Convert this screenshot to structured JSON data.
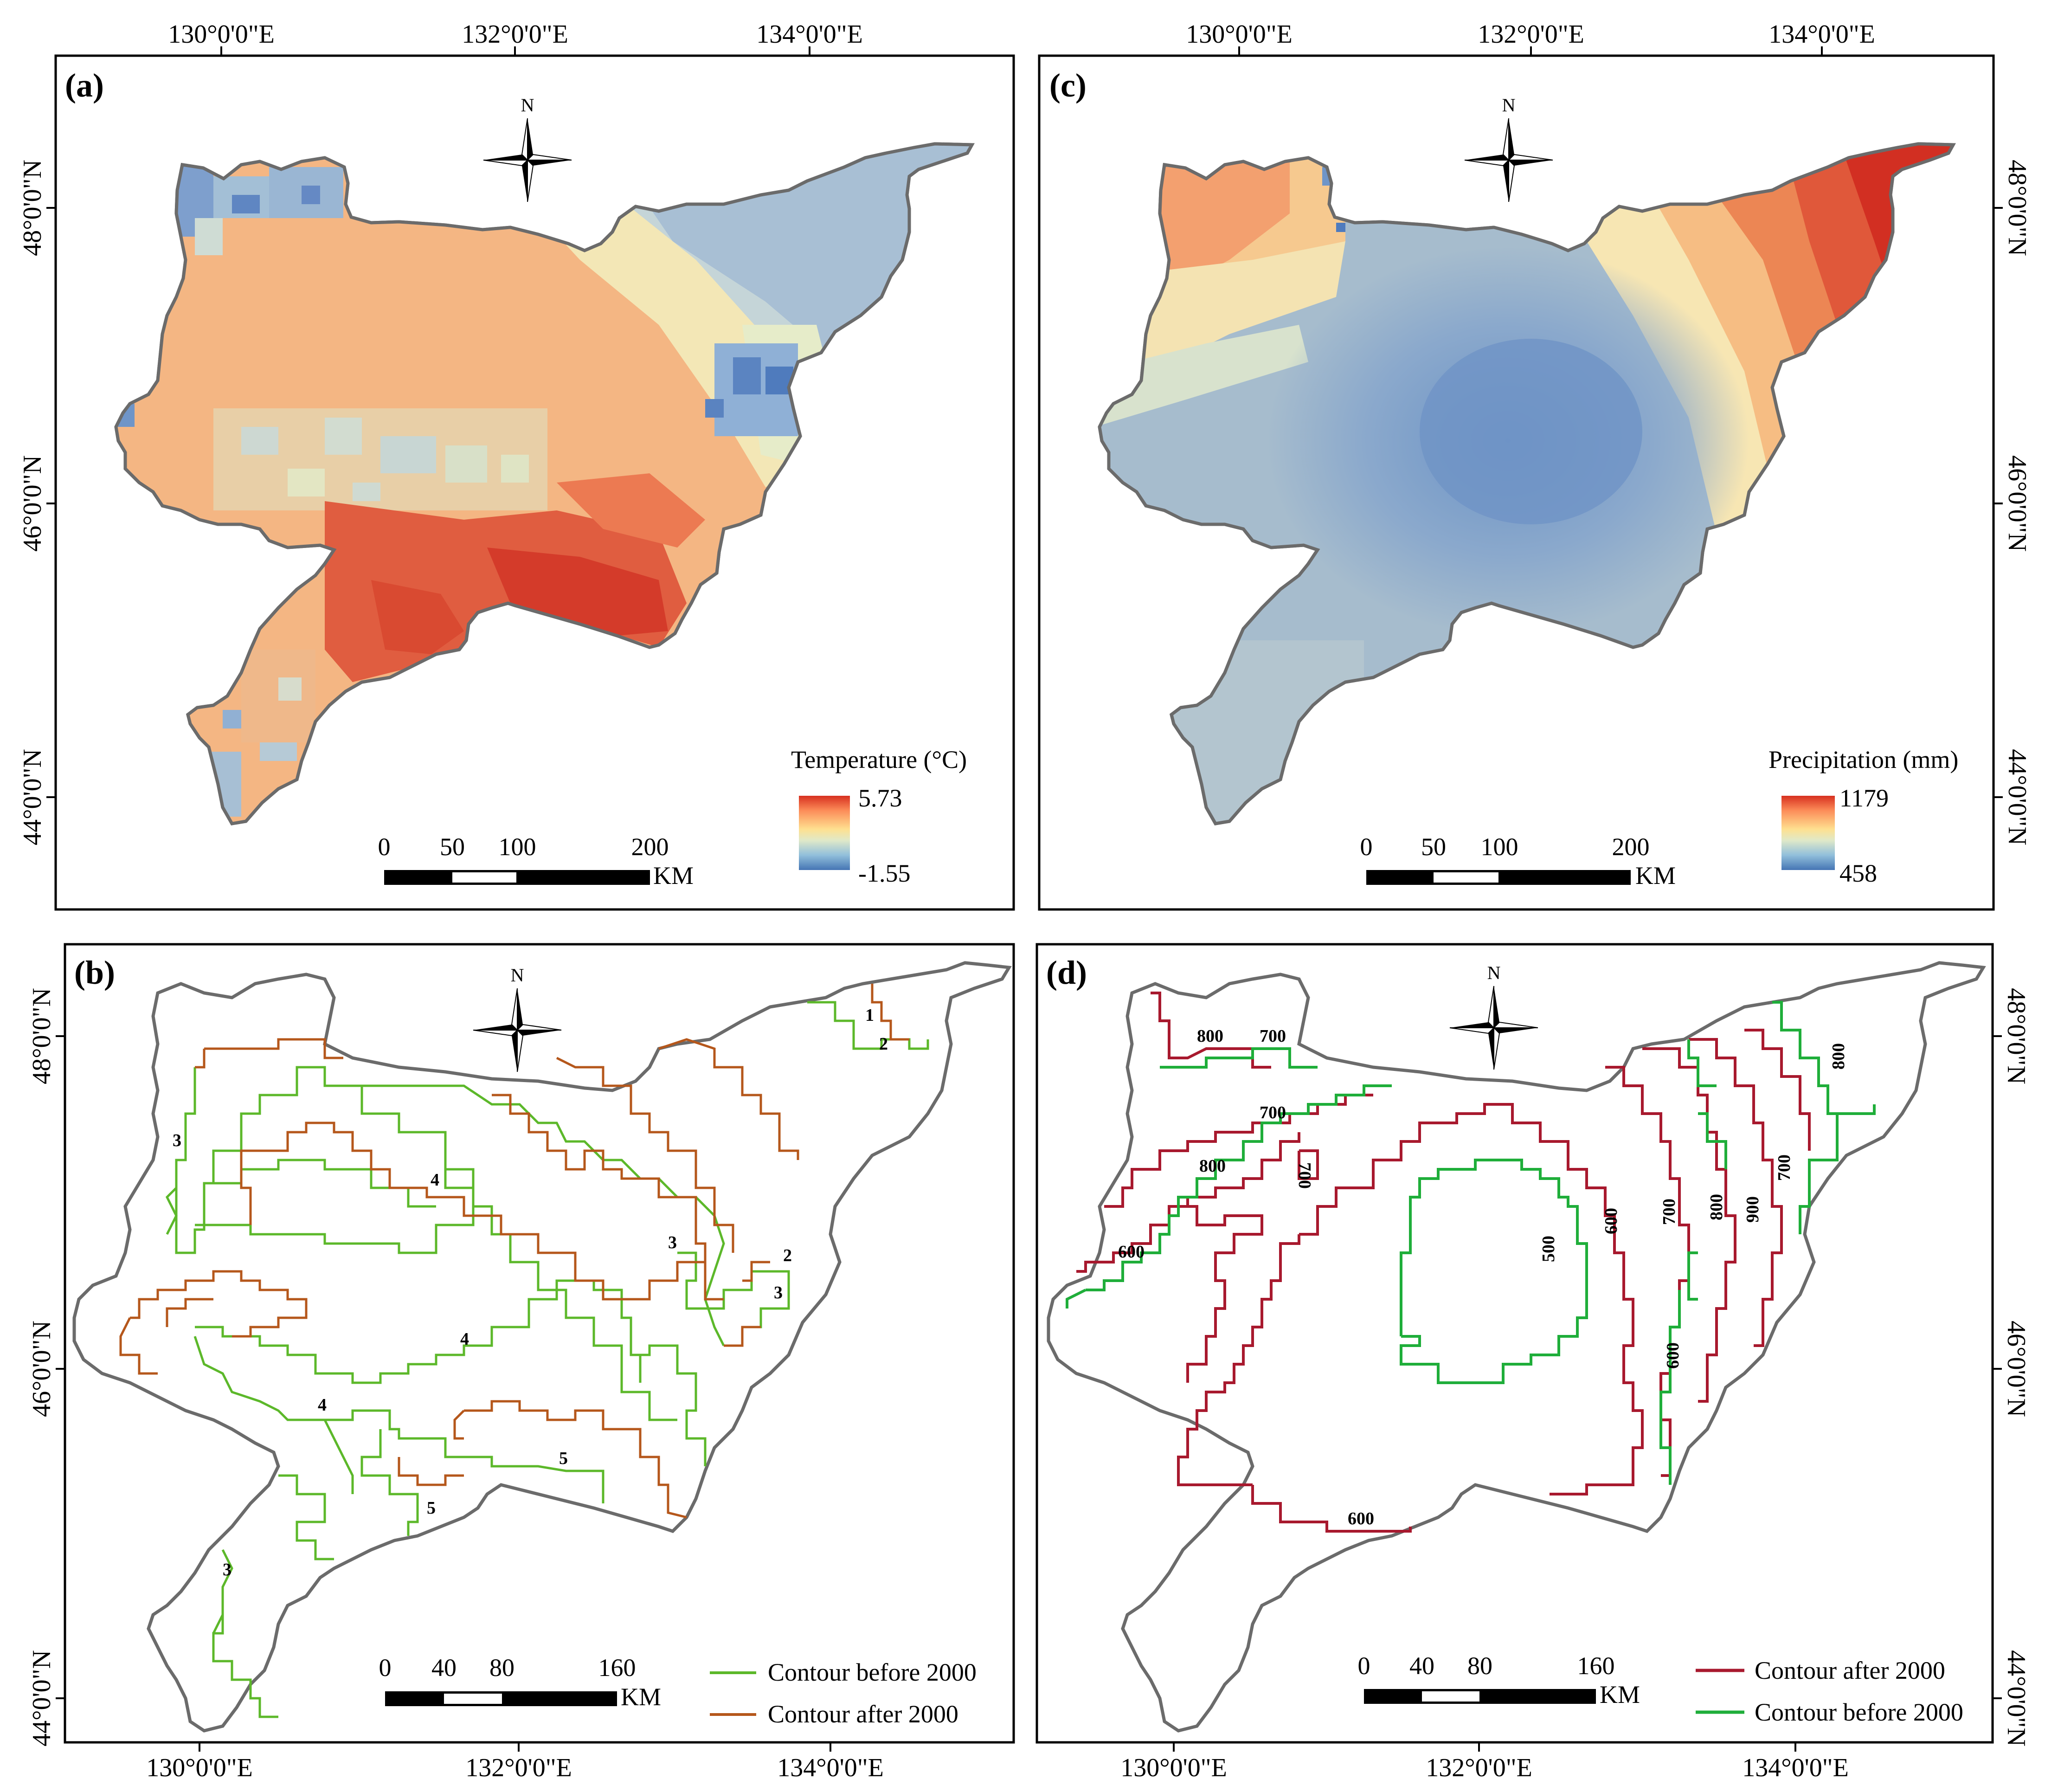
{
  "figure": {
    "panels": [
      {
        "id": "a",
        "label": "(a)",
        "kind": "raster",
        "top_lon_labels": [
          "130°0'0\"E",
          "132°0'0\"E",
          "134°0'0\"E"
        ],
        "left_lat_labels": [
          "48°0'0\"N",
          "46°0'0\"N",
          "44°0'0\"N"
        ],
        "north_label": "N",
        "legend": {
          "title": "Temperature (°C)",
          "max": "5.73",
          "min": "-1.55",
          "colors": [
            "#d7301f",
            "#fc8d59",
            "#fee090",
            "#e0e9c8",
            "#91bfdb",
            "#4575b4"
          ]
        },
        "scale_bar": {
          "ticks": [
            "0",
            "50",
            "100",
            "200"
          ],
          "unit": "KM"
        },
        "field": "temperature"
      },
      {
        "id": "c",
        "label": "(c)",
        "kind": "raster",
        "top_lon_labels": [
          "130°0'0\"E",
          "132°0'0\"E",
          "134°0'0\"E"
        ],
        "right_lat_labels": [
          "48°0'0\"N",
          "46°0'0\"N",
          "44°0'0\"N"
        ],
        "north_label": "N",
        "legend": {
          "title": "Precipitation (mm)",
          "max": "1179",
          "min": "458",
          "colors": [
            "#d7301f",
            "#fc8d59",
            "#fee090",
            "#e0e9c8",
            "#91bfdb",
            "#4575b4"
          ]
        },
        "scale_bar": {
          "ticks": [
            "0",
            "50",
            "100",
            "200"
          ],
          "unit": "KM"
        },
        "field": "precipitation"
      },
      {
        "id": "b",
        "label": "(b)",
        "kind": "contour",
        "bottom_lon_labels": [
          "130°0'0\"E",
          "132°0'0\"E",
          "134°0'0\"E"
        ],
        "left_lat_labels": [
          "48°0'0\"N",
          "46°0'0\"N",
          "44°0'0\"N"
        ],
        "north_label": "N",
        "legend": [
          {
            "label": "Contour before 2000",
            "color": "#5cb82a"
          },
          {
            "label": "Contour after 2000",
            "color": "#b5571b"
          }
        ],
        "scale_bar": {
          "ticks": [
            "0",
            "40",
            "80",
            "160"
          ],
          "unit": "KM"
        },
        "contour_labels": [
          {
            "text": "1",
            "series": "after"
          },
          {
            "text": "2",
            "series": "before"
          },
          {
            "text": "3",
            "series": "before"
          },
          {
            "text": "4",
            "series": "before"
          },
          {
            "text": "3",
            "series": "after"
          },
          {
            "text": "2",
            "series": "after"
          },
          {
            "text": "3",
            "series": "before"
          },
          {
            "text": "4",
            "series": "after"
          },
          {
            "text": "4",
            "series": "before"
          },
          {
            "text": "5",
            "series": "before"
          },
          {
            "text": "5",
            "series": "after"
          },
          {
            "text": "3",
            "series": "before"
          }
        ]
      },
      {
        "id": "d",
        "label": "(d)",
        "kind": "contour",
        "bottom_lon_labels": [
          "130°0'0\"E",
          "132°0'0\"E",
          "134°0'0\"E"
        ],
        "right_lat_labels": [
          "48°0'0\"N",
          "46°0'0\"N",
          "44°0'0\"N"
        ],
        "north_label": "N",
        "legend": [
          {
            "label": "Contour after 2000",
            "color": "#a8192e"
          },
          {
            "label": "Contour before 2000",
            "color": "#1fae3a"
          }
        ],
        "scale_bar": {
          "ticks": [
            "0",
            "40",
            "80",
            "160"
          ],
          "unit": "KM"
        },
        "contour_labels": [
          {
            "text": "800",
            "series": "after"
          },
          {
            "text": "700",
            "series": "before"
          },
          {
            "text": "700",
            "series": "after"
          },
          {
            "text": "700",
            "series": "after"
          },
          {
            "text": "800",
            "series": "before"
          },
          {
            "text": "600",
            "series": "after"
          },
          {
            "text": "500",
            "series": "before"
          },
          {
            "text": "600",
            "series": "after"
          },
          {
            "text": "700",
            "series": "after"
          },
          {
            "text": "800",
            "series": "after"
          },
          {
            "text": "900",
            "series": "after"
          },
          {
            "text": "700",
            "series": "before"
          },
          {
            "text": "800",
            "series": "before"
          },
          {
            "text": "600",
            "series": "before"
          },
          {
            "text": "600",
            "series": "after"
          }
        ]
      }
    ]
  }
}
